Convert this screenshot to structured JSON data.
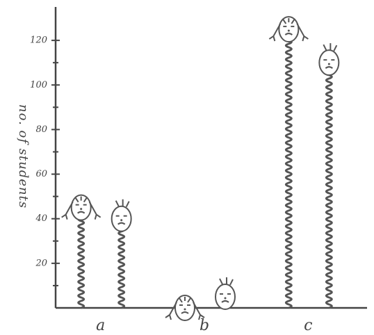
{
  "chart_data": {
    "type": "pictograph",
    "y_label": "no. of students",
    "categories": [
      "a",
      "b",
      "c"
    ],
    "series": [
      {
        "color": "#555555",
        "values": [
          45,
          0,
          125
        ]
      },
      {
        "color": "#555555",
        "values": [
          40,
          5,
          110
        ]
      }
    ],
    "ylim": [
      0,
      135
    ],
    "yticks": [
      20,
      40,
      60,
      80,
      100,
      120
    ],
    "minor_yticks": [
      10,
      30,
      50,
      70,
      90,
      110
    ]
  }
}
